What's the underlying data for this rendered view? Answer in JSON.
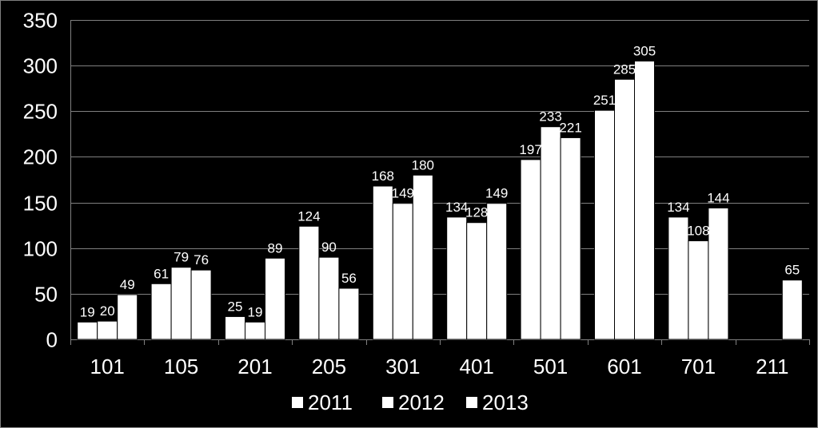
{
  "chart_data": {
    "type": "bar",
    "title": "",
    "xlabel": "",
    "ylabel": "",
    "categories": [
      "101",
      "105",
      "201",
      "205",
      "301",
      "401",
      "501",
      "601",
      "701",
      "211"
    ],
    "series": [
      {
        "name": "2011",
        "values": [
          19,
          61,
          25,
          124,
          168,
          134,
          197,
          251,
          134,
          null
        ]
      },
      {
        "name": "2012",
        "values": [
          20,
          79,
          19,
          90,
          149,
          128,
          233,
          285,
          108,
          null
        ]
      },
      {
        "name": "2013",
        "values": [
          49,
          76,
          89,
          56,
          180,
          149,
          221,
          305,
          144,
          65
        ]
      }
    ],
    "ylim": [
      0,
      350
    ],
    "yticks": [
      0,
      50,
      100,
      150,
      200,
      250,
      300,
      350
    ],
    "grid": true,
    "legend": "bottom",
    "colors": {
      "background": "#000000",
      "bars": "#ffffff",
      "text": "#ffffff",
      "grid": "#808080"
    }
  }
}
